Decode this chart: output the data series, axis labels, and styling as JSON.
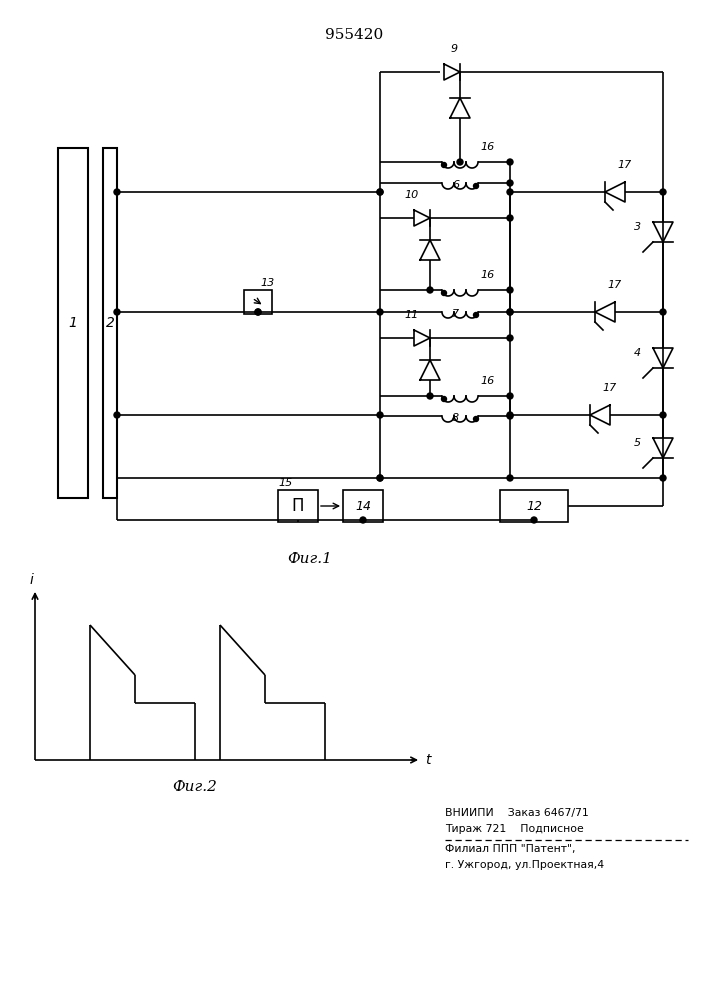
{
  "patent_number": "955420",
  "fig1_label": "Фиг.1",
  "fig2_label": "Фиг.2",
  "bottom_text_line1": "ВНИИПИ    Заказ 6467/71",
  "bottom_text_line2": "Тираж 721    Подписное",
  "bottom_text_line4": "Филиал ППП \"Патент\",",
  "bottom_text_line5": "г. Ужгород, ул.Проектная,4",
  "bg_color": "#ffffff",
  "line_color": "#000000"
}
